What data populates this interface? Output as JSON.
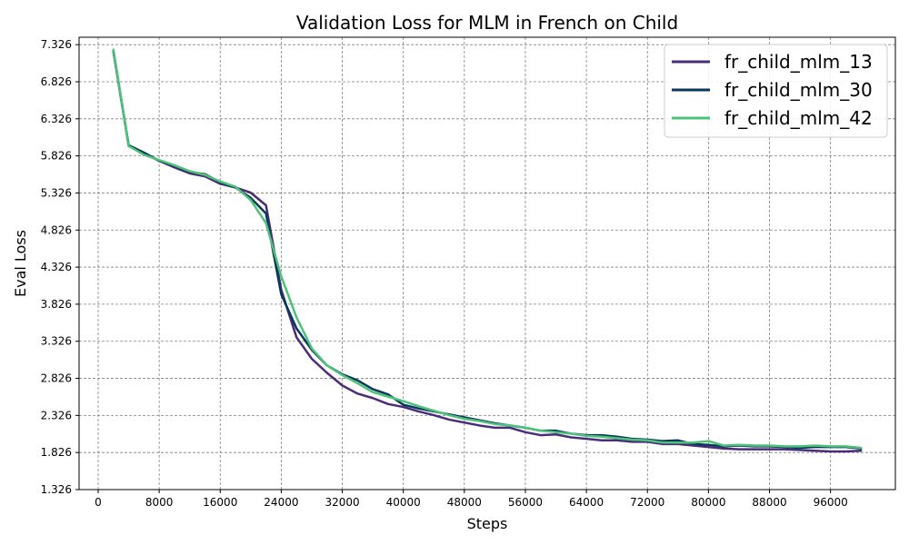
{
  "chart_data": {
    "type": "line",
    "title": "Validation Loss for MLM in French on Child",
    "xlabel": "Steps",
    "ylabel": "Eval Loss",
    "xlim": [
      -2500,
      104500
    ],
    "ylim": [
      1.326,
      7.426
    ],
    "x_ticks": [
      0,
      8000,
      16000,
      24000,
      32000,
      40000,
      48000,
      56000,
      64000,
      72000,
      80000,
      88000,
      96000
    ],
    "y_ticks": [
      1.326,
      1.826,
      2.326,
      2.826,
      3.326,
      3.826,
      4.326,
      4.826,
      5.326,
      5.826,
      6.326,
      6.826,
      7.326
    ],
    "y_tick_labels": [
      "1.326",
      "1.826",
      "2.326",
      "2.826",
      "3.326",
      "3.826",
      "4.326",
      "4.826",
      "5.326",
      "5.826",
      "6.326",
      "6.826",
      "7.326"
    ],
    "grid": true,
    "legend_position": "top-right",
    "x": [
      2000,
      4000,
      6000,
      8000,
      10000,
      12000,
      14000,
      16000,
      18000,
      20000,
      22000,
      24000,
      26000,
      28000,
      30000,
      32000,
      34000,
      36000,
      38000,
      40000,
      42000,
      44000,
      46000,
      48000,
      50000,
      52000,
      54000,
      56000,
      58000,
      60000,
      62000,
      64000,
      66000,
      68000,
      70000,
      72000,
      74000,
      76000,
      78000,
      80000,
      82000,
      84000,
      86000,
      88000,
      90000,
      92000,
      94000,
      96000,
      98000,
      100000
    ],
    "series": [
      {
        "name": "fr_child_mlm_13",
        "color": "#4b2c7a",
        "values": [
          7.24,
          5.96,
          5.86,
          5.76,
          5.67,
          5.59,
          5.55,
          5.45,
          5.4,
          5.33,
          5.16,
          4.02,
          3.38,
          3.09,
          2.9,
          2.73,
          2.62,
          2.56,
          2.48,
          2.44,
          2.38,
          2.33,
          2.27,
          2.23,
          2.19,
          2.16,
          2.16,
          2.1,
          2.06,
          2.07,
          2.03,
          2.01,
          1.99,
          1.99,
          1.97,
          1.97,
          1.94,
          1.94,
          1.92,
          1.9,
          1.88,
          1.87,
          1.87,
          1.87,
          1.87,
          1.86,
          1.85,
          1.84,
          1.84,
          1.85
        ]
      },
      {
        "name": "fr_child_mlm_30",
        "color": "#08395a",
        "values": [
          7.24,
          5.97,
          5.87,
          5.76,
          5.69,
          5.61,
          5.58,
          5.47,
          5.4,
          5.26,
          5.05,
          3.96,
          3.5,
          3.21,
          3.0,
          2.88,
          2.8,
          2.68,
          2.61,
          2.47,
          2.42,
          2.38,
          2.34,
          2.3,
          2.26,
          2.22,
          2.19,
          2.16,
          2.12,
          2.12,
          2.08,
          2.06,
          2.06,
          2.04,
          2.01,
          2.0,
          1.98,
          1.99,
          1.94,
          1.93,
          1.91,
          1.92,
          1.91,
          1.91,
          1.9,
          1.89,
          1.9,
          1.9,
          1.9,
          1.88
        ]
      },
      {
        "name": "fr_child_mlm_42",
        "color": "#4ec27b",
        "values": [
          7.26,
          5.96,
          5.84,
          5.77,
          5.7,
          5.62,
          5.57,
          5.48,
          5.41,
          5.23,
          4.92,
          4.2,
          3.65,
          3.23,
          3.0,
          2.87,
          2.76,
          2.64,
          2.58,
          2.52,
          2.45,
          2.39,
          2.33,
          2.28,
          2.25,
          2.21,
          2.19,
          2.16,
          2.12,
          2.1,
          2.08,
          2.05,
          2.04,
          2.02,
          2.0,
          1.99,
          1.96,
          1.96,
          1.96,
          1.98,
          1.92,
          1.93,
          1.92,
          1.92,
          1.91,
          1.91,
          1.92,
          1.91,
          1.91,
          1.89
        ]
      }
    ]
  }
}
